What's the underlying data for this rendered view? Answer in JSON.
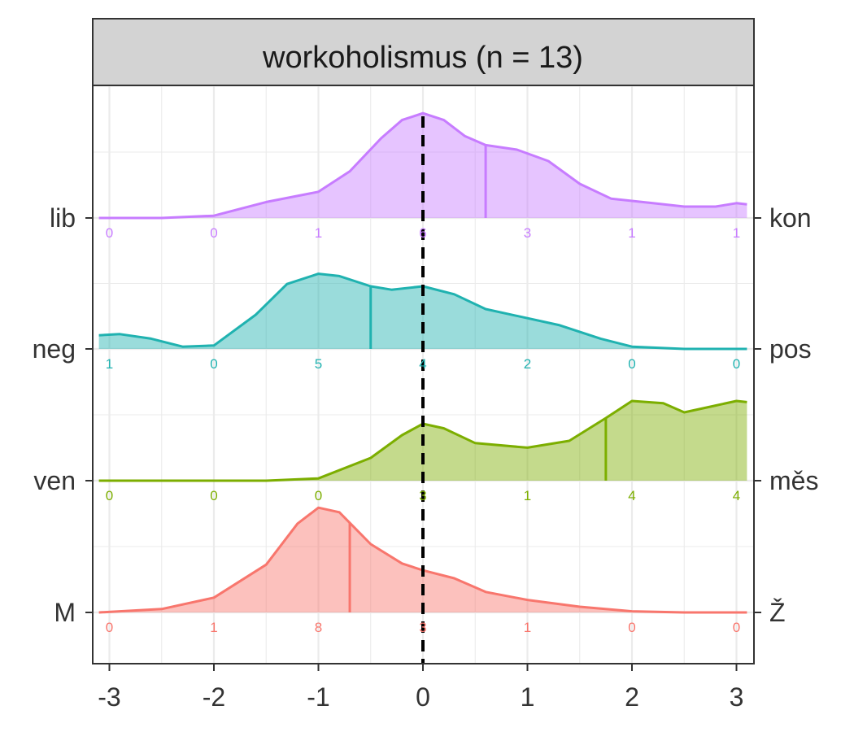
{
  "chart_data": {
    "type": "ridgeline",
    "title": "workoholismus (n = 13)",
    "xlim": [
      -3.1,
      3.1
    ],
    "x_ticks": [
      -3,
      -2,
      -1,
      0,
      1,
      2,
      3
    ],
    "x_tick_labels": [
      "-3",
      "-2",
      "-1",
      "0",
      "1",
      "2",
      "3"
    ],
    "reference_line_x": 0,
    "grid": true,
    "legend": "none",
    "rows": [
      {
        "left_label": "M",
        "right_label": "Ž",
        "color": "#F8766D",
        "median": -0.7,
        "counts": [
          0,
          1,
          8,
          3,
          1,
          0,
          0
        ],
        "density": [
          [
            -3.1,
            0.0
          ],
          [
            -2.5,
            0.03
          ],
          [
            -2.0,
            0.13
          ],
          [
            -1.5,
            0.42
          ],
          [
            -1.2,
            0.78
          ],
          [
            -1.0,
            0.92
          ],
          [
            -0.8,
            0.88
          ],
          [
            -0.5,
            0.6
          ],
          [
            -0.2,
            0.43
          ],
          [
            0.0,
            0.37
          ],
          [
            0.3,
            0.3
          ],
          [
            0.6,
            0.18
          ],
          [
            1.0,
            0.11
          ],
          [
            1.5,
            0.05
          ],
          [
            2.0,
            0.01
          ],
          [
            2.5,
            0.0
          ],
          [
            3.1,
            0.0
          ]
        ]
      },
      {
        "left_label": "ven",
        "right_label": "měs",
        "color": "#7CAE00",
        "median": 1.75,
        "counts": [
          0,
          0,
          0,
          3,
          1,
          4,
          4
        ],
        "density": [
          [
            -3.1,
            0.0
          ],
          [
            -2.0,
            0.0
          ],
          [
            -1.5,
            0.0
          ],
          [
            -1.0,
            0.02
          ],
          [
            -0.5,
            0.2
          ],
          [
            -0.2,
            0.4
          ],
          [
            0.0,
            0.5
          ],
          [
            0.2,
            0.46
          ],
          [
            0.5,
            0.33
          ],
          [
            1.0,
            0.29
          ],
          [
            1.4,
            0.35
          ],
          [
            1.75,
            0.55
          ],
          [
            2.0,
            0.7
          ],
          [
            2.3,
            0.68
          ],
          [
            2.5,
            0.6
          ],
          [
            2.8,
            0.66
          ],
          [
            3.0,
            0.7
          ],
          [
            3.1,
            0.69
          ]
        ]
      },
      {
        "left_label": "neg",
        "right_label": "pos",
        "color": "#20B2B0",
        "median": -0.5,
        "counts": [
          1,
          0,
          5,
          4,
          2,
          0,
          0
        ],
        "density": [
          [
            -3.1,
            0.12
          ],
          [
            -2.9,
            0.13
          ],
          [
            -2.6,
            0.09
          ],
          [
            -2.3,
            0.02
          ],
          [
            -2.0,
            0.03
          ],
          [
            -1.6,
            0.3
          ],
          [
            -1.3,
            0.57
          ],
          [
            -1.0,
            0.66
          ],
          [
            -0.8,
            0.64
          ],
          [
            -0.5,
            0.55
          ],
          [
            -0.3,
            0.52
          ],
          [
            0.0,
            0.55
          ],
          [
            0.3,
            0.48
          ],
          [
            0.6,
            0.35
          ],
          [
            1.0,
            0.27
          ],
          [
            1.3,
            0.21
          ],
          [
            1.7,
            0.09
          ],
          [
            2.0,
            0.02
          ],
          [
            2.5,
            0.0
          ],
          [
            3.1,
            0.0
          ]
        ]
      },
      {
        "left_label": "lib",
        "right_label": "kon",
        "color": "#C77CFF",
        "median": 0.6,
        "counts": [
          0,
          0,
          1,
          6,
          3,
          1,
          1
        ],
        "density": [
          [
            -3.1,
            0.0
          ],
          [
            -2.5,
            0.0
          ],
          [
            -2.0,
            0.02
          ],
          [
            -1.5,
            0.14
          ],
          [
            -1.0,
            0.23
          ],
          [
            -0.7,
            0.41
          ],
          [
            -0.4,
            0.7
          ],
          [
            -0.2,
            0.86
          ],
          [
            0.0,
            0.92
          ],
          [
            0.2,
            0.86
          ],
          [
            0.4,
            0.72
          ],
          [
            0.6,
            0.64
          ],
          [
            0.9,
            0.6
          ],
          [
            1.2,
            0.5
          ],
          [
            1.5,
            0.3
          ],
          [
            1.8,
            0.17
          ],
          [
            2.2,
            0.13
          ],
          [
            2.5,
            0.1
          ],
          [
            2.8,
            0.1
          ],
          [
            3.0,
            0.13
          ],
          [
            3.1,
            0.12
          ]
        ]
      }
    ]
  }
}
